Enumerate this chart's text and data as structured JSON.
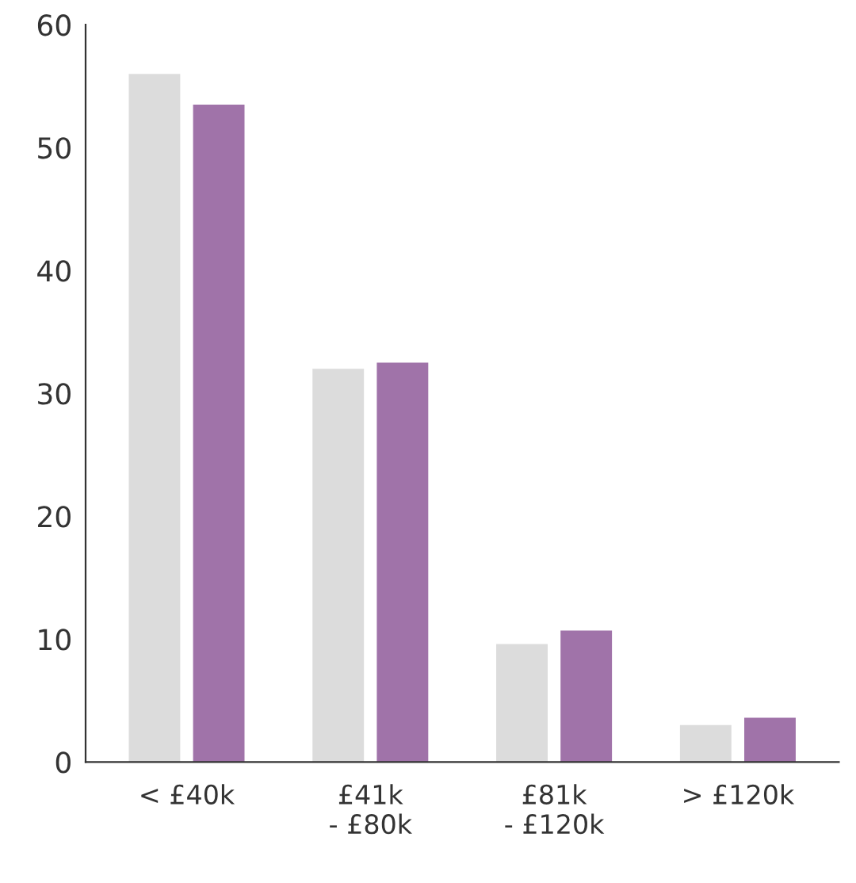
{
  "chart_data": {
    "type": "bar",
    "categories": [
      "< £40k",
      "£41k\n- £80k",
      "£81k\n- £120k",
      "> £120k"
    ],
    "series": [
      {
        "color": "#dcdcdc",
        "values": [
          56,
          32,
          9.6,
          3
        ]
      },
      {
        "color": "#a073a9",
        "values": [
          53.5,
          32.5,
          10.7,
          3.6
        ]
      }
    ],
    "ylim": [
      0,
      60
    ],
    "yticks": [
      0,
      10,
      20,
      30,
      40,
      50,
      60
    ],
    "grid": false,
    "legend": false
  }
}
